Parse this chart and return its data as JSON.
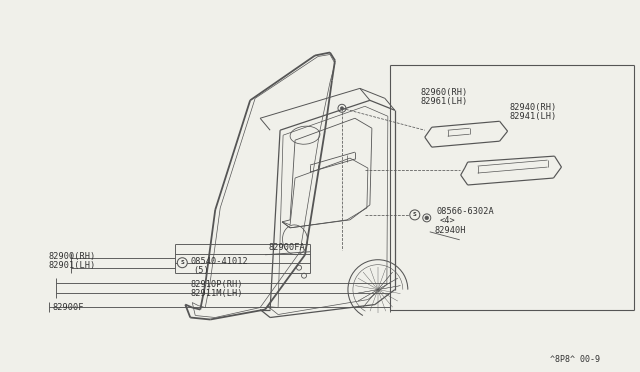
{
  "bg_color": "#f0f0ea",
  "fig_width": 6.4,
  "fig_height": 3.72,
  "lc": "#555555",
  "tc": "#333333",
  "fs": 6.2,
  "labels": {
    "l1a": "82960(RH)",
    "l1b": "82961(LH)",
    "l2a": "82940(RH)",
    "l2b": "82941(LH)",
    "l3a": "08566-6302A",
    "l3b": "<4>",
    "l4": "82940H",
    "l5": "82900FA",
    "l6a": "08540-41012",
    "l6b": "(5)",
    "l7a": "82900(RH)",
    "l7b": "82901(LH)",
    "l8a": "82910P(RH)",
    "l8b": "82911M(LH)",
    "l9": "82900F",
    "foot": "^8P8^ 00-9"
  }
}
